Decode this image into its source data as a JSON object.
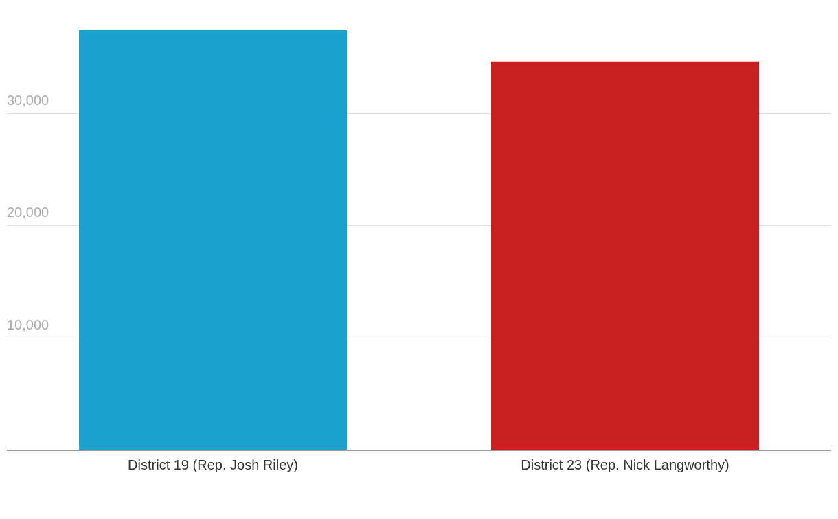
{
  "chart_data": {
    "type": "bar",
    "categories": [
      "District 19 (Rep. Josh Riley)",
      "District 23 (Rep. Nick Langworthy)"
    ],
    "values": [
      37400,
      34600
    ],
    "colors": [
      "#1aa1ce",
      "#c91f1f"
    ],
    "ylim": [
      0,
      37400
    ],
    "yticks": [
      {
        "value": 0,
        "label": null
      },
      {
        "value": 10000,
        "label": "10,000"
      },
      {
        "value": 20000,
        "label": "20,000"
      },
      {
        "value": 30000,
        "label": "30,000"
      }
    ],
    "grid": "y",
    "legend": false
  }
}
